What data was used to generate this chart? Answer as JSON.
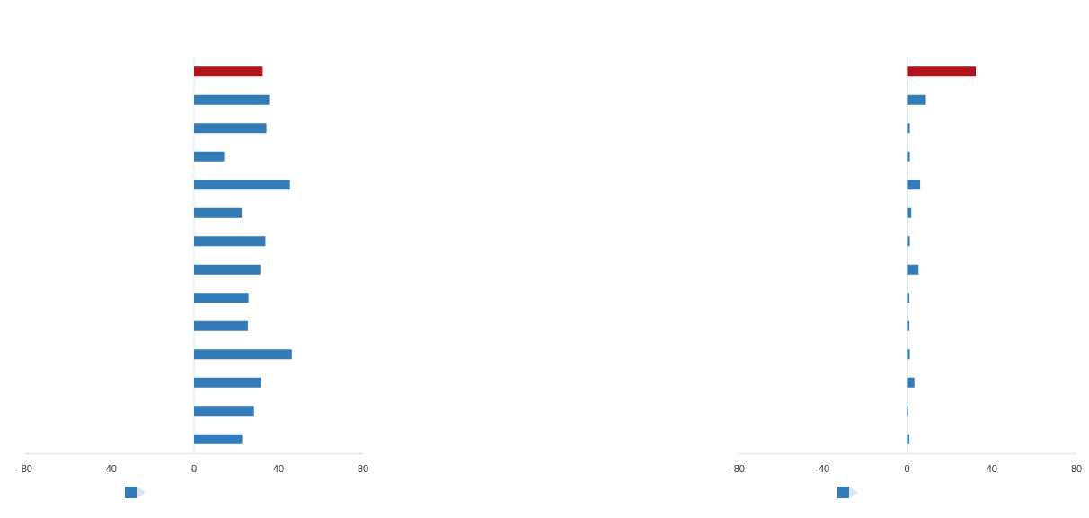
{
  "chart_data": [
    {
      "type": "bar",
      "orientation": "horizontal",
      "categories": [
        null,
        null,
        null,
        null,
        null,
        null,
        null,
        null,
        null,
        null,
        null,
        null,
        null,
        null
      ],
      "values": [
        32.5,
        35.6,
        34.3,
        14.3,
        45.4,
        22.6,
        33.8,
        31.4,
        25.8,
        25.5,
        46.3,
        31.8,
        28.4,
        22.8
      ],
      "colors": [
        "#ae141b",
        "#337cb8",
        "#337cb8",
        "#337cb8",
        "#337cb8",
        "#337cb8",
        "#337cb8",
        "#337cb8",
        "#337cb8",
        "#337cb8",
        "#337cb8",
        "#337cb8",
        "#337cb8",
        "#337cb8"
      ],
      "xlim": [
        -80,
        80
      ],
      "xticks": [
        -80,
        -40,
        0,
        40,
        80
      ]
    },
    {
      "type": "bar",
      "orientation": "horizontal",
      "categories": [
        null,
        null,
        null,
        null,
        null,
        null,
        null,
        null,
        null,
        null,
        null,
        null,
        null,
        null
      ],
      "values": [
        32.5,
        8.9,
        1.3,
        1.3,
        6.2,
        2,
        1.3,
        5.4,
        1.1,
        1.1,
        1.3,
        3.5,
        0.6,
        1.1
      ],
      "colors": [
        "#ae141b",
        "#337cb8",
        "#337cb8",
        "#337cb8",
        "#337cb8",
        "#337cb8",
        "#337cb8",
        "#337cb8",
        "#337cb8",
        "#337cb8",
        "#337cb8",
        "#337cb8",
        "#337cb8",
        "#337cb8"
      ],
      "xlim": [
        -80,
        80
      ],
      "xticks": [
        -80,
        -40,
        0,
        40,
        80
      ]
    }
  ]
}
